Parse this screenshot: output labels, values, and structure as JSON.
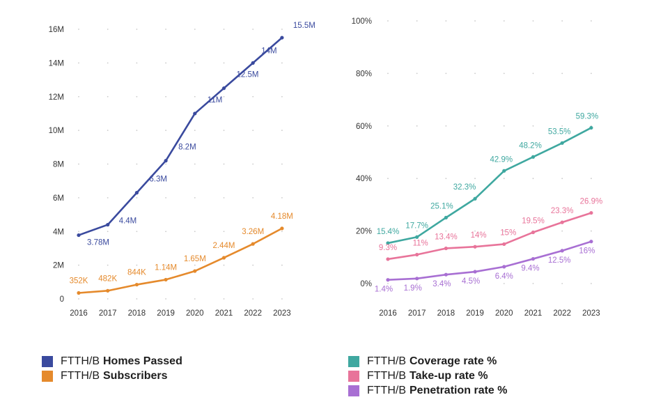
{
  "chart_data": [
    {
      "type": "line",
      "id": "left",
      "categories": [
        "2016",
        "2017",
        "2018",
        "2019",
        "2020",
        "2021",
        "2022",
        "2023"
      ],
      "yticks": [
        0,
        2,
        4,
        6,
        8,
        10,
        12,
        14,
        16
      ],
      "ytick_labels": [
        "0",
        "2M",
        "4M",
        "6M",
        "8M",
        "10M",
        "12M",
        "14M",
        "16M"
      ],
      "ylim": [
        0,
        16
      ],
      "y_unit": "M",
      "series": [
        {
          "name": "FTTH/B Homes Passed",
          "color": "#3a4a9e",
          "values": [
            3.78,
            4.4,
            6.3,
            8.2,
            11,
            12.5,
            14,
            15.5
          ],
          "labels": [
            "3.78M",
            "4.4M",
            "6.3M",
            "8.2M",
            "11M",
            "12.5M",
            "14M",
            "15.5M"
          ]
        },
        {
          "name": "FTTH/B Subscribers",
          "color": "#e58a2c",
          "values": [
            0.352,
            0.482,
            0.844,
            1.14,
            1.65,
            2.44,
            3.26,
            4.18
          ],
          "labels": [
            "352K",
            "482K",
            "844K",
            "1.14M",
            "1.65M",
            "2.44M",
            "3.26M",
            "4.18M"
          ]
        }
      ]
    },
    {
      "type": "line",
      "id": "right",
      "categories": [
        "2016",
        "2017",
        "2018",
        "2019",
        "2020",
        "2021",
        "2022",
        "2023"
      ],
      "yticks": [
        0,
        20,
        40,
        60,
        80,
        100
      ],
      "ytick_labels": [
        "0%",
        "20%",
        "40%",
        "60%",
        "80%",
        "100%"
      ],
      "ylim": [
        0,
        100
      ],
      "y_unit": "%",
      "series": [
        {
          "name": "FTTH/B Coverage rate %",
          "color": "#3fa8a0",
          "values": [
            15.4,
            17.7,
            25.1,
            32.3,
            42.9,
            48.2,
            53.5,
            59.3
          ],
          "labels": [
            "15.4%",
            "17.7%",
            "25.1%",
            "32.3%",
            "42.9%",
            "48.2%",
            "53.5%",
            "59.3%"
          ]
        },
        {
          "name": "FTTH/B Take-up rate %",
          "color": "#e8749a",
          "values": [
            9.3,
            11,
            13.4,
            14,
            15,
            19.5,
            23.3,
            26.9
          ],
          "labels": [
            "9.3%",
            "11%",
            "13.4%",
            "14%",
            "15%",
            "19.5%",
            "23.3%",
            "26.9%"
          ]
        },
        {
          "name": "FTTH/B Penetration rate %",
          "color": "#a86fd3",
          "values": [
            1.4,
            1.9,
            3.4,
            4.5,
            6.4,
            9.4,
            12.5,
            16
          ],
          "labels": [
            "1.4%",
            "1.9%",
            "3.4%",
            "4.5%",
            "6.4%",
            "9.4%",
            "12.5%",
            "16%"
          ]
        }
      ]
    }
  ],
  "legend_left": [
    {
      "prefix": "FTTH/B",
      "bold": "Homes Passed",
      "color": "#3a4a9e"
    },
    {
      "prefix": "FTTH/B",
      "bold": "Subscribers",
      "color": "#e58a2c"
    }
  ],
  "legend_right": [
    {
      "prefix": "FTTH/B",
      "bold": "Coverage rate %",
      "color": "#3fa8a0"
    },
    {
      "prefix": "FTTH/B",
      "bold": "Take-up rate %",
      "color": "#e8749a"
    },
    {
      "prefix": "FTTH/B",
      "bold": "Penetration rate %",
      "color": "#a86fd3"
    }
  ]
}
